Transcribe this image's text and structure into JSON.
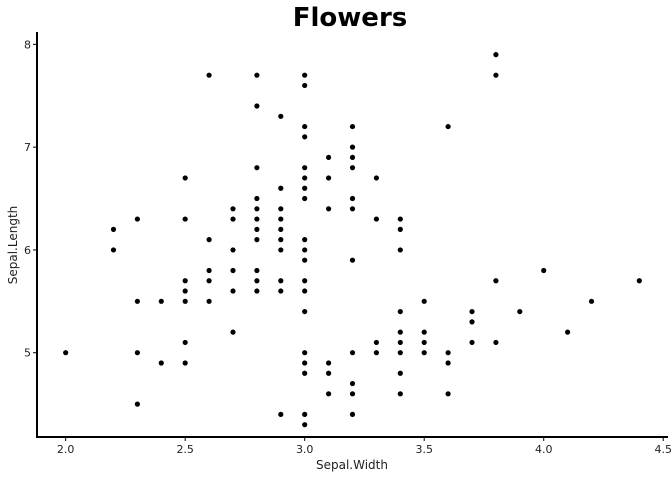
{
  "chart_data": {
    "type": "scatter",
    "title": "Flowers",
    "xlabel": "Sepal.Width",
    "ylabel": "Sepal.Length",
    "xlim": [
      1.88,
      4.52
    ],
    "ylim": [
      4.18,
      8.12
    ],
    "xticks": [
      2.0,
      2.5,
      3.0,
      3.5,
      4.0,
      4.5
    ],
    "xtick_labels": [
      "2.0",
      "2.5",
      "3.0",
      "3.5",
      "4.0",
      "4.5"
    ],
    "yticks": [
      5,
      6,
      7,
      8
    ],
    "ytick_labels": [
      "5",
      "6",
      "7",
      "8"
    ],
    "grid": false,
    "legend": "none",
    "point_color": "#000000",
    "points": [
      [
        2.0,
        5.0
      ],
      [
        2.2,
        6.0
      ],
      [
        2.2,
        6.2
      ],
      [
        2.3,
        4.5
      ],
      [
        2.3,
        5.0
      ],
      [
        2.3,
        5.5
      ],
      [
        2.3,
        6.3
      ],
      [
        2.4,
        4.9
      ],
      [
        2.4,
        5.5
      ],
      [
        2.5,
        4.9
      ],
      [
        2.5,
        5.1
      ],
      [
        2.5,
        5.5
      ],
      [
        2.5,
        5.6
      ],
      [
        2.5,
        5.7
      ],
      [
        2.5,
        6.3
      ],
      [
        2.5,
        6.7
      ],
      [
        2.6,
        5.5
      ],
      [
        2.6,
        5.7
      ],
      [
        2.6,
        5.8
      ],
      [
        2.6,
        6.1
      ],
      [
        2.6,
        7.7
      ],
      [
        2.7,
        5.2
      ],
      [
        2.7,
        5.6
      ],
      [
        2.7,
        5.8
      ],
      [
        2.7,
        6.0
      ],
      [
        2.7,
        6.3
      ],
      [
        2.7,
        6.4
      ],
      [
        2.8,
        5.6
      ],
      [
        2.8,
        5.7
      ],
      [
        2.8,
        5.8
      ],
      [
        2.8,
        6.1
      ],
      [
        2.8,
        6.2
      ],
      [
        2.8,
        6.3
      ],
      [
        2.8,
        6.4
      ],
      [
        2.8,
        6.5
      ],
      [
        2.8,
        6.8
      ],
      [
        2.8,
        7.4
      ],
      [
        2.8,
        7.7
      ],
      [
        2.9,
        4.4
      ],
      [
        2.9,
        5.6
      ],
      [
        2.9,
        5.7
      ],
      [
        2.9,
        6.0
      ],
      [
        2.9,
        6.1
      ],
      [
        2.9,
        6.2
      ],
      [
        2.9,
        6.3
      ],
      [
        2.9,
        6.4
      ],
      [
        2.9,
        6.6
      ],
      [
        2.9,
        7.3
      ],
      [
        3.0,
        4.3
      ],
      [
        3.0,
        4.4
      ],
      [
        3.0,
        4.8
      ],
      [
        3.0,
        4.9
      ],
      [
        3.0,
        5.0
      ],
      [
        3.0,
        5.4
      ],
      [
        3.0,
        5.6
      ],
      [
        3.0,
        5.7
      ],
      [
        3.0,
        5.9
      ],
      [
        3.0,
        6.0
      ],
      [
        3.0,
        6.1
      ],
      [
        3.0,
        6.5
      ],
      [
        3.0,
        6.6
      ],
      [
        3.0,
        6.7
      ],
      [
        3.0,
        6.8
      ],
      [
        3.0,
        7.1
      ],
      [
        3.0,
        7.2
      ],
      [
        3.0,
        7.6
      ],
      [
        3.0,
        7.7
      ],
      [
        3.1,
        4.6
      ],
      [
        3.1,
        4.8
      ],
      [
        3.1,
        4.9
      ],
      [
        3.1,
        6.4
      ],
      [
        3.1,
        6.7
      ],
      [
        3.1,
        6.9
      ],
      [
        3.2,
        4.4
      ],
      [
        3.2,
        4.6
      ],
      [
        3.2,
        4.7
      ],
      [
        3.2,
        5.0
      ],
      [
        3.2,
        5.9
      ],
      [
        3.2,
        6.4
      ],
      [
        3.2,
        6.5
      ],
      [
        3.2,
        6.8
      ],
      [
        3.2,
        6.9
      ],
      [
        3.2,
        7.0
      ],
      [
        3.2,
        7.2
      ],
      [
        3.3,
        5.0
      ],
      [
        3.3,
        5.1
      ],
      [
        3.3,
        6.3
      ],
      [
        3.3,
        6.7
      ],
      [
        3.4,
        4.6
      ],
      [
        3.4,
        4.8
      ],
      [
        3.4,
        5.0
      ],
      [
        3.4,
        5.1
      ],
      [
        3.4,
        5.2
      ],
      [
        3.4,
        5.4
      ],
      [
        3.4,
        6.0
      ],
      [
        3.4,
        6.2
      ],
      [
        3.4,
        6.3
      ],
      [
        3.5,
        5.0
      ],
      [
        3.5,
        5.1
      ],
      [
        3.5,
        5.2
      ],
      [
        3.5,
        5.5
      ],
      [
        3.6,
        4.6
      ],
      [
        3.6,
        4.9
      ],
      [
        3.6,
        5.0
      ],
      [
        3.6,
        7.2
      ],
      [
        3.7,
        5.1
      ],
      [
        3.7,
        5.3
      ],
      [
        3.7,
        5.4
      ],
      [
        3.8,
        5.1
      ],
      [
        3.8,
        5.7
      ],
      [
        3.8,
        7.7
      ],
      [
        3.8,
        7.9
      ],
      [
        3.9,
        5.4
      ],
      [
        4.0,
        5.8
      ],
      [
        4.1,
        5.2
      ],
      [
        4.2,
        5.5
      ],
      [
        4.4,
        5.7
      ]
    ]
  }
}
